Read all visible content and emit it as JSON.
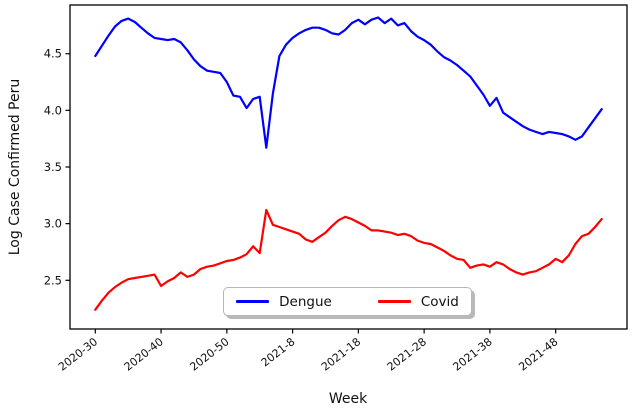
{
  "figure": {
    "xlabel": "Week",
    "ylabel": "Log Case Confirmed Peru"
  },
  "legend": {
    "items": [
      {
        "label": "Dengue",
        "color": "#0000ff"
      },
      {
        "label": "Covid",
        "color": "#ff0000"
      }
    ]
  },
  "chart_data": {
    "type": "line",
    "title": "",
    "xlabel": "Week",
    "ylabel": "Log Case Confirmed Peru",
    "grid": false,
    "legend_position": "lower center",
    "ylim": [
      2.07,
      4.93
    ],
    "yticks": [
      2.5,
      3.0,
      3.5,
      4.0,
      4.5
    ],
    "xtick_indices": [
      0,
      10,
      20,
      30,
      40,
      50,
      60,
      70
    ],
    "xtick_labels": [
      "2020-30",
      "2020-40",
      "2020-50",
      "2021-8",
      "2021-18",
      "2021-28",
      "2021-38",
      "2021-48"
    ],
    "x": [
      "2020-30",
      "2020-31",
      "2020-32",
      "2020-33",
      "2020-34",
      "2020-35",
      "2020-36",
      "2020-37",
      "2020-38",
      "2020-39",
      "2020-40",
      "2020-41",
      "2020-42",
      "2020-43",
      "2020-44",
      "2020-45",
      "2020-46",
      "2020-47",
      "2020-48",
      "2020-49",
      "2020-50",
      "2020-51",
      "2020-52",
      "2021-1",
      "2021-2",
      "2021-3",
      "2021-4",
      "2021-5",
      "2021-6",
      "2021-7",
      "2021-8",
      "2021-9",
      "2021-10",
      "2021-11",
      "2021-12",
      "2021-13",
      "2021-14",
      "2021-15",
      "2021-16",
      "2021-17",
      "2021-18",
      "2021-19",
      "2021-20",
      "2021-21",
      "2021-22",
      "2021-23",
      "2021-24",
      "2021-25",
      "2021-26",
      "2021-27",
      "2021-28",
      "2021-29",
      "2021-30",
      "2021-31",
      "2021-32",
      "2021-33",
      "2021-34",
      "2021-35",
      "2021-36",
      "2021-37",
      "2021-38",
      "2021-39",
      "2021-40",
      "2021-41",
      "2021-42",
      "2021-43",
      "2021-44",
      "2021-45",
      "2021-46",
      "2021-47",
      "2021-48",
      "2021-49",
      "2021-50",
      "2021-51",
      "2021-52",
      "2022-1",
      "2022-2",
      "2022-3"
    ],
    "series": [
      {
        "name": "Dengue",
        "color": "#0000ff",
        "values": [
          4.48,
          4.57,
          4.66,
          4.74,
          4.79,
          4.81,
          4.78,
          4.73,
          4.68,
          4.64,
          4.63,
          4.62,
          4.63,
          4.6,
          4.53,
          4.45,
          4.39,
          4.35,
          4.34,
          4.33,
          4.25,
          4.13,
          4.12,
          4.02,
          4.1,
          4.12,
          3.67,
          4.15,
          4.48,
          4.58,
          4.64,
          4.68,
          4.71,
          4.73,
          4.73,
          4.71,
          4.68,
          4.67,
          4.71,
          4.77,
          4.8,
          4.76,
          4.8,
          4.82,
          4.77,
          4.81,
          4.75,
          4.77,
          4.7,
          4.65,
          4.62,
          4.58,
          4.52,
          4.47,
          4.44,
          4.4,
          4.35,
          4.3,
          4.22,
          4.14,
          4.04,
          4.11,
          3.98,
          3.94,
          3.9,
          3.86,
          3.83,
          3.81,
          3.79,
          3.81,
          3.8,
          3.79,
          3.77,
          3.74,
          3.77,
          3.85,
          3.93,
          4.01
        ]
      },
      {
        "name": "Covid",
        "color": "#ff0000",
        "values": [
          2.24,
          2.32,
          2.39,
          2.44,
          2.48,
          2.51,
          2.52,
          2.53,
          2.54,
          2.55,
          2.45,
          2.49,
          2.52,
          2.57,
          2.53,
          2.55,
          2.6,
          2.62,
          2.63,
          2.65,
          2.67,
          2.68,
          2.7,
          2.73,
          2.8,
          2.74,
          3.12,
          2.99,
          2.97,
          2.95,
          2.93,
          2.91,
          2.86,
          2.84,
          2.88,
          2.92,
          2.98,
          3.03,
          3.06,
          3.04,
          3.01,
          2.98,
          2.94,
          2.94,
          2.93,
          2.92,
          2.9,
          2.91,
          2.89,
          2.85,
          2.83,
          2.82,
          2.79,
          2.76,
          2.72,
          2.69,
          2.68,
          2.61,
          2.63,
          2.64,
          2.62,
          2.66,
          2.64,
          2.6,
          2.57,
          2.55,
          2.57,
          2.58,
          2.61,
          2.64,
          2.69,
          2.66,
          2.72,
          2.82,
          2.89,
          2.91,
          2.97,
          3.04
        ]
      }
    ]
  }
}
